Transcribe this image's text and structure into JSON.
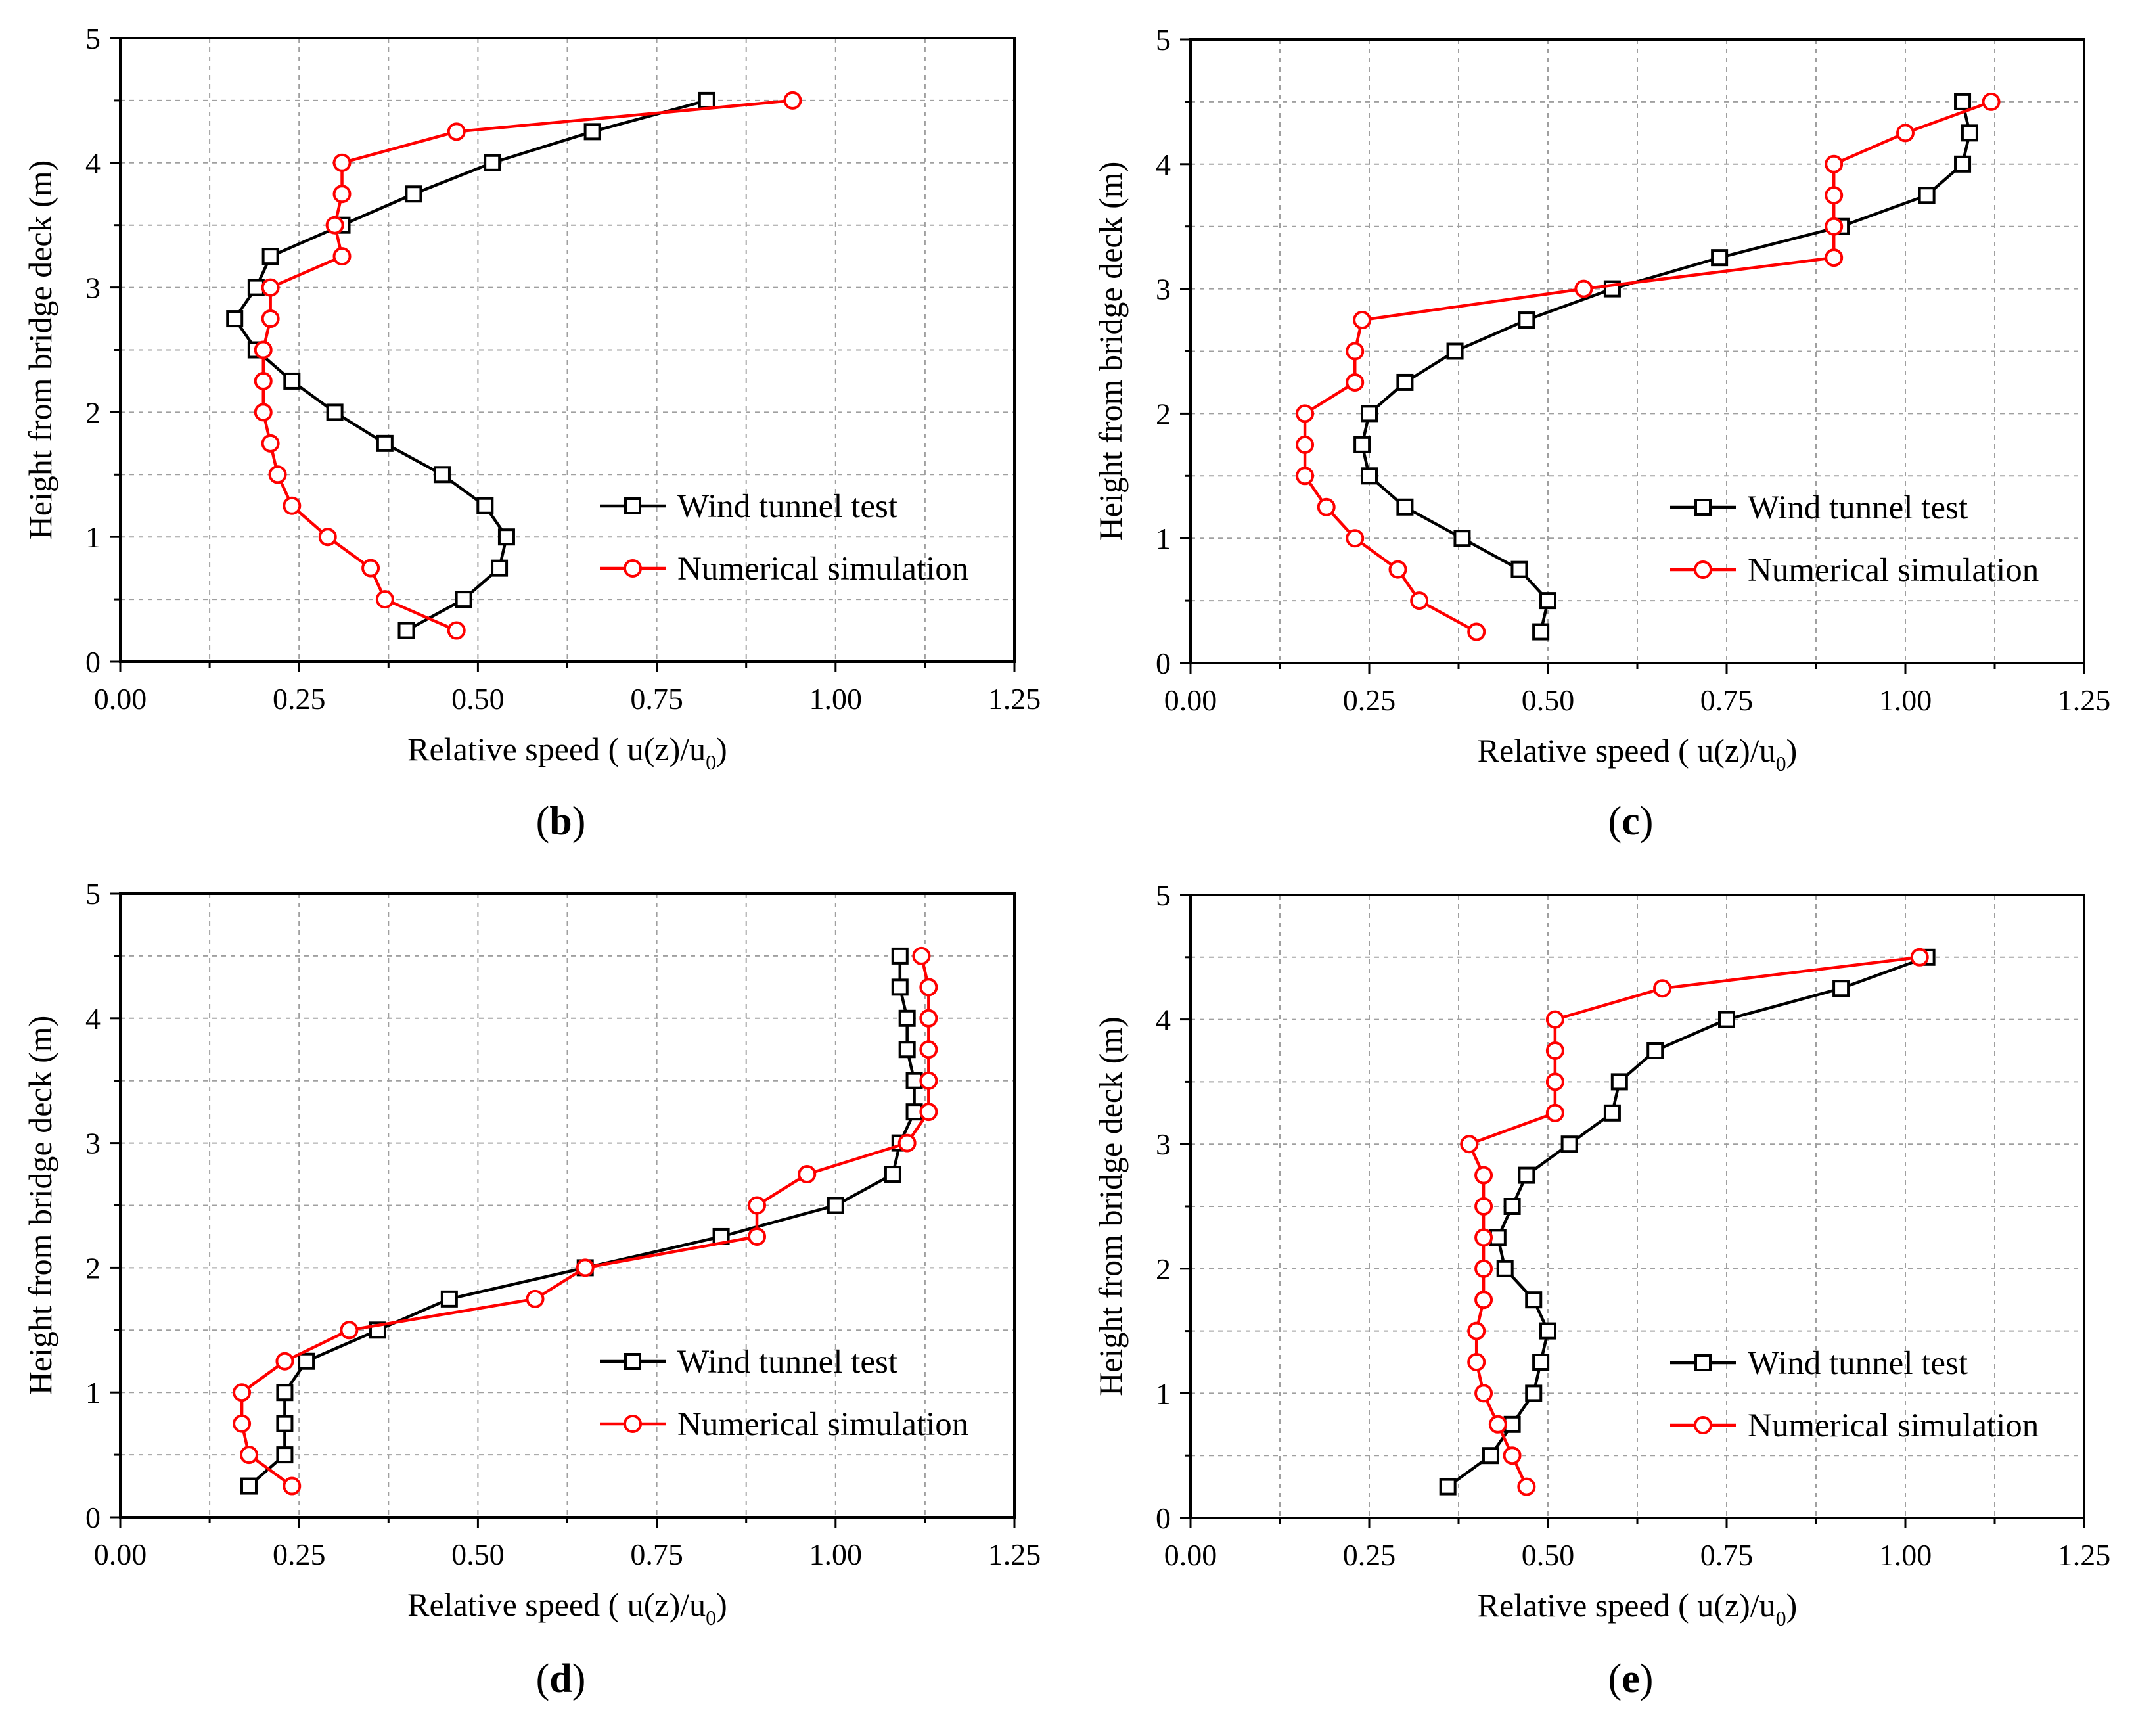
{
  "chart_data": [
    {
      "type": "line",
      "panel_label": "b",
      "xlabel": "Relative speed ( u(z)/u",
      "xlabel_sub": "0",
      "xlabel_close": ")",
      "ylabel": "Height from bridge deck (m)",
      "xlim": [
        0,
        1.25
      ],
      "ylim": [
        0,
        5
      ],
      "xticks": [
        "0.00",
        "0.25",
        "0.50",
        "0.75",
        "1.00",
        "1.25"
      ],
      "yticks": [
        "0",
        "1",
        "2",
        "3",
        "4",
        "5"
      ],
      "grid": true,
      "legend_position": "right-middle",
      "series": [
        {
          "name": "Wind tunnel test",
          "color": "#000000",
          "marker": "square",
          "x": [
            0.4,
            0.48,
            0.53,
            0.54,
            0.51,
            0.45,
            0.37,
            0.3,
            0.24,
            0.19,
            0.16,
            0.19,
            0.21,
            0.31,
            0.41,
            0.52,
            0.66,
            0.82
          ],
          "y": [
            0.25,
            0.5,
            0.75,
            1.0,
            1.25,
            1.5,
            1.75,
            2.0,
            2.25,
            2.5,
            2.75,
            3.0,
            3.25,
            3.5,
            3.75,
            4.0,
            4.25,
            4.5
          ]
        },
        {
          "name": "Numerical simulation",
          "color": "#ff0000",
          "marker": "circle",
          "x": [
            0.47,
            0.37,
            0.35,
            0.29,
            0.24,
            0.22,
            0.21,
            0.2,
            0.2,
            0.2,
            0.21,
            0.21,
            0.31,
            0.3,
            0.31,
            0.31,
            0.47,
            0.94
          ],
          "y": [
            0.25,
            0.5,
            0.75,
            1.0,
            1.25,
            1.5,
            1.75,
            2.0,
            2.25,
            2.5,
            2.75,
            3.0,
            3.25,
            3.5,
            3.75,
            4.0,
            4.25,
            4.5
          ]
        }
      ]
    },
    {
      "type": "line",
      "panel_label": "c",
      "xlabel": "Relative speed ( u(z)/u",
      "xlabel_sub": "0",
      "xlabel_close": ")",
      "ylabel": "Height from bridge deck (m)",
      "xlim": [
        0,
        1.25
      ],
      "ylim": [
        0,
        5
      ],
      "xticks": [
        "0.00",
        "0.25",
        "0.50",
        "0.75",
        "1.00",
        "1.25"
      ],
      "yticks": [
        "0",
        "1",
        "2",
        "3",
        "4",
        "5"
      ],
      "grid": true,
      "legend_position": "right-middle",
      "series": [
        {
          "name": "Wind tunnel test",
          "color": "#000000",
          "marker": "square",
          "x": [
            0.49,
            0.5,
            0.46,
            0.38,
            0.3,
            0.25,
            0.24,
            0.25,
            0.3,
            0.37,
            0.47,
            0.59,
            0.74,
            0.91,
            1.03,
            1.08,
            1.09,
            1.08
          ],
          "y": [
            0.25,
            0.5,
            0.75,
            1.0,
            1.25,
            1.5,
            1.75,
            2.0,
            2.25,
            2.5,
            2.75,
            3.0,
            3.25,
            3.5,
            3.75,
            4.0,
            4.25,
            4.5
          ]
        },
        {
          "name": "Numerical simulation",
          "color": "#ff0000",
          "marker": "circle",
          "x": [
            0.4,
            0.32,
            0.29,
            0.23,
            0.19,
            0.16,
            0.16,
            0.16,
            0.23,
            0.23,
            0.24,
            0.55,
            0.9,
            0.9,
            0.9,
            0.9,
            1.0,
            1.12
          ],
          "y": [
            0.25,
            0.5,
            0.75,
            1.0,
            1.25,
            1.5,
            1.75,
            2.0,
            2.25,
            2.5,
            2.75,
            3.0,
            3.25,
            3.5,
            3.75,
            4.0,
            4.25,
            4.5
          ]
        }
      ]
    },
    {
      "type": "line",
      "panel_label": "d",
      "xlabel": "Relative speed ( u(z)/u",
      "xlabel_sub": "0",
      "xlabel_close": ")",
      "ylabel": "Height from bridge deck (m)",
      "xlim": [
        0,
        1.25
      ],
      "ylim": [
        0,
        5
      ],
      "xticks": [
        "0.00",
        "0.25",
        "0.50",
        "0.75",
        "1.00",
        "1.25"
      ],
      "yticks": [
        "0",
        "1",
        "2",
        "3",
        "4",
        "5"
      ],
      "grid": true,
      "legend_position": "right-bottom",
      "series": [
        {
          "name": "Wind tunnel test",
          "color": "#000000",
          "marker": "square",
          "x": [
            0.18,
            0.23,
            0.23,
            0.23,
            0.26,
            0.36,
            0.46,
            0.65,
            0.84,
            1.0,
            1.08,
            1.09,
            1.11,
            1.11,
            1.1,
            1.1,
            1.09,
            1.09
          ],
          "y": [
            0.25,
            0.5,
            0.75,
            1.0,
            1.25,
            1.5,
            1.75,
            2.0,
            2.25,
            2.5,
            2.75,
            3.0,
            3.25,
            3.5,
            3.75,
            4.0,
            4.25,
            4.5
          ]
        },
        {
          "name": "Numerical simulation",
          "color": "#ff0000",
          "marker": "circle",
          "x": [
            0.24,
            0.18,
            0.17,
            0.17,
            0.23,
            0.32,
            0.58,
            0.65,
            0.89,
            0.89,
            0.96,
            1.1,
            1.13,
            1.13,
            1.13,
            1.13,
            1.13,
            1.12
          ],
          "y": [
            0.25,
            0.5,
            0.75,
            1.0,
            1.25,
            1.5,
            1.75,
            2.0,
            2.25,
            2.5,
            2.75,
            3.0,
            3.25,
            3.5,
            3.75,
            4.0,
            4.25,
            4.5
          ]
        }
      ]
    },
    {
      "type": "line",
      "panel_label": "e",
      "xlabel": "Relative speed ( u(z)/u",
      "xlabel_sub": "0",
      "xlabel_close": ")",
      "ylabel": "Height from bridge deck (m)",
      "xlim": [
        0,
        1.25
      ],
      "ylim": [
        0,
        5
      ],
      "xticks": [
        "0.00",
        "0.25",
        "0.50",
        "0.75",
        "1.00",
        "1.25"
      ],
      "yticks": [
        "0",
        "1",
        "2",
        "3",
        "4",
        "5"
      ],
      "grid": true,
      "legend_position": "right-bottom",
      "series": [
        {
          "name": "Wind tunnel test",
          "color": "#000000",
          "marker": "square",
          "x": [
            0.36,
            0.42,
            0.45,
            0.48,
            0.49,
            0.5,
            0.48,
            0.44,
            0.43,
            0.45,
            0.47,
            0.53,
            0.59,
            0.6,
            0.65,
            0.75,
            0.91,
            1.03
          ],
          "y": [
            0.25,
            0.5,
            0.75,
            1.0,
            1.25,
            1.5,
            1.75,
            2.0,
            2.25,
            2.5,
            2.75,
            3.0,
            3.25,
            3.5,
            3.75,
            4.0,
            4.25,
            4.5
          ]
        },
        {
          "name": "Numerical simulation",
          "color": "#ff0000",
          "marker": "circle",
          "x": [
            0.47,
            0.45,
            0.43,
            0.41,
            0.4,
            0.4,
            0.41,
            0.41,
            0.41,
            0.41,
            0.41,
            0.39,
            0.51,
            0.51,
            0.51,
            0.51,
            0.66,
            1.02
          ],
          "y": [
            0.25,
            0.5,
            0.75,
            1.0,
            1.25,
            1.5,
            1.75,
            2.0,
            2.25,
            2.5,
            2.75,
            3.0,
            3.25,
            3.5,
            3.75,
            4.0,
            4.25,
            4.5
          ]
        }
      ]
    }
  ]
}
